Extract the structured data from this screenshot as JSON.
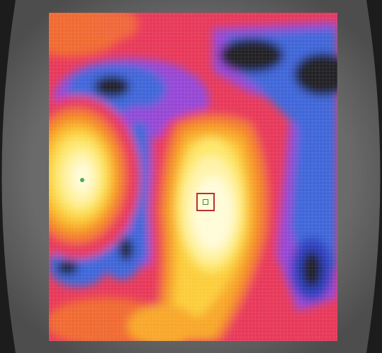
{
  "scene": {
    "kind": "thermal-heatmap-display",
    "palette": [
      "#202028",
      "#2f3fbf",
      "#3f66d9",
      "#9646d6",
      "#d83fb0",
      "#e8395a",
      "#ee4a3a",
      "#f47d2c",
      "#f8a72c",
      "#fbcd3a",
      "#fde76a",
      "#fff3a8",
      "#fffbd8"
    ],
    "grid": true
  }
}
